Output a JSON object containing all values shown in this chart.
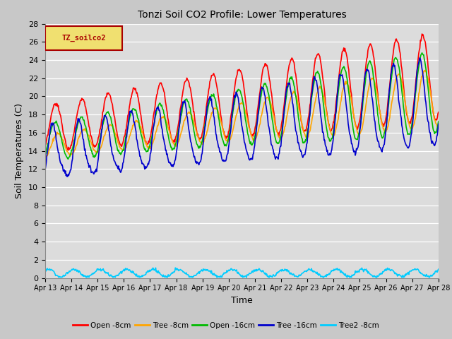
{
  "title": "Tonzi Soil CO2 Profile: Lower Temperatures",
  "xlabel": "Time",
  "ylabel": "Soil Temperatures (C)",
  "ylim": [
    0,
    28
  ],
  "yticks": [
    0,
    2,
    4,
    6,
    8,
    10,
    12,
    14,
    16,
    18,
    20,
    22,
    24,
    26,
    28
  ],
  "fig_bg": "#c8c8c8",
  "plot_bg": "#dcdcdc",
  "legend_label": "TZ_soilco2",
  "legend_bg": "#f0e070",
  "legend_border": "#aa0000",
  "legend_text_color": "#aa0000",
  "series": [
    {
      "label": "Open -8cm",
      "color": "#ff0000"
    },
    {
      "label": "Tree -8cm",
      "color": "#ffa500"
    },
    {
      "label": "Open -16cm",
      "color": "#00bb00"
    },
    {
      "label": "Tree -16cm",
      "color": "#0000cc"
    },
    {
      "label": "Tree2 -8cm",
      "color": "#00ccff"
    }
  ],
  "num_days": 15,
  "points_per_day": 48,
  "start_day": 13
}
